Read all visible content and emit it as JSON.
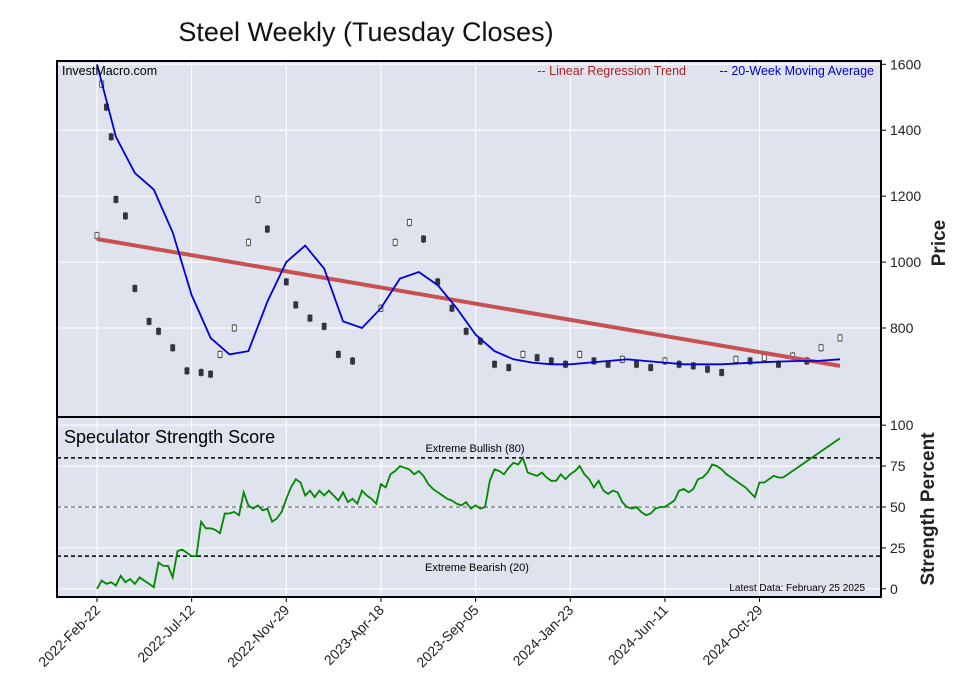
{
  "title": "Steel Weekly (Tuesday Closes)",
  "source_label": "InvestMacro.com",
  "legend": {
    "regression": "-- Linear Regression Trend",
    "moving_average": "-- 20-Week Moving Average"
  },
  "colors": {
    "panel_bg": "#dfe3ee",
    "regression": "#c85050",
    "moving_average": "#0000dd",
    "strength_line": "#008800",
    "regression_text": "#b02020",
    "ma_text": "#0000cc",
    "candle_up": "#ffffff",
    "candle_down": "#333344"
  },
  "price_axis": {
    "label": "Price",
    "ylim": [
      530,
      1610
    ],
    "ticks": [
      "800",
      "1000",
      "1200",
      "1400",
      "1600"
    ]
  },
  "strength_axis": {
    "label": "Strength Percent",
    "ylim": [
      -5,
      105
    ],
    "ticks": [
      "0",
      "25",
      "50",
      "75",
      "100"
    ]
  },
  "x_ticks": [
    "2022-Feb-22",
    "2022-Jul-12",
    "2022-Nov-29",
    "2023-Apr-18",
    "2023-Sep-05",
    "2024-Jan-23",
    "2024-Jun-11",
    "2024-Oct-29"
  ],
  "strength_panel": {
    "title": "Speculator Strength Score",
    "extreme_bullish_label": "Extreme Bullish (80)",
    "extreme_bearish_label": "Extreme Bearish (20)",
    "latest_label": "Latest Data: February 25 2025"
  },
  "chart_data": {
    "type": "line",
    "x_start": "2022-02-22",
    "x_end": "2025-02-25",
    "price_series": [
      {
        "date": "2022-02-22",
        "close": 1080
      },
      {
        "date": "2022-03-01",
        "close": 1540
      },
      {
        "date": "2022-03-08",
        "close": 1470
      },
      {
        "date": "2022-03-15",
        "close": 1380
      },
      {
        "date": "2022-03-22",
        "close": 1190
      },
      {
        "date": "2022-04-05",
        "close": 1140
      },
      {
        "date": "2022-04-19",
        "close": 920
      },
      {
        "date": "2022-05-10",
        "close": 820
      },
      {
        "date": "2022-05-24",
        "close": 790
      },
      {
        "date": "2022-06-14",
        "close": 740
      },
      {
        "date": "2022-07-05",
        "close": 670
      },
      {
        "date": "2022-07-26",
        "close": 665
      },
      {
        "date": "2022-08-09",
        "close": 660
      },
      {
        "date": "2022-08-23",
        "close": 720
      },
      {
        "date": "2022-09-13",
        "close": 800
      },
      {
        "date": "2022-10-04",
        "close": 1060
      },
      {
        "date": "2022-10-18",
        "close": 1190
      },
      {
        "date": "2022-11-01",
        "close": 1100
      },
      {
        "date": "2022-11-29",
        "close": 940
      },
      {
        "date": "2022-12-13",
        "close": 870
      },
      {
        "date": "2023-01-03",
        "close": 830
      },
      {
        "date": "2023-01-24",
        "close": 805
      },
      {
        "date": "2023-02-14",
        "close": 720
      },
      {
        "date": "2023-03-07",
        "close": 700
      },
      {
        "date": "2023-04-18",
        "close": 860
      },
      {
        "date": "2023-05-09",
        "close": 1060
      },
      {
        "date": "2023-05-30",
        "close": 1120
      },
      {
        "date": "2023-06-20",
        "close": 1070
      },
      {
        "date": "2023-07-11",
        "close": 940
      },
      {
        "date": "2023-08-01",
        "close": 860
      },
      {
        "date": "2023-08-22",
        "close": 790
      },
      {
        "date": "2023-09-12",
        "close": 760
      },
      {
        "date": "2023-10-03",
        "close": 690
      },
      {
        "date": "2023-10-24",
        "close": 680
      },
      {
        "date": "2023-11-14",
        "close": 720
      },
      {
        "date": "2023-12-05",
        "close": 710
      },
      {
        "date": "2023-12-26",
        "close": 700
      },
      {
        "date": "2024-01-16",
        "close": 690
      },
      {
        "date": "2024-02-06",
        "close": 720
      },
      {
        "date": "2024-02-27",
        "close": 700
      },
      {
        "date": "2024-03-19",
        "close": 690
      },
      {
        "date": "2024-04-09",
        "close": 705
      },
      {
        "date": "2024-04-30",
        "close": 690
      },
      {
        "date": "2024-05-21",
        "close": 680
      },
      {
        "date": "2024-06-11",
        "close": 700
      },
      {
        "date": "2024-07-02",
        "close": 690
      },
      {
        "date": "2024-07-23",
        "close": 685
      },
      {
        "date": "2024-08-13",
        "close": 675
      },
      {
        "date": "2024-09-03",
        "close": 665
      },
      {
        "date": "2024-09-24",
        "close": 705
      },
      {
        "date": "2024-10-15",
        "close": 700
      },
      {
        "date": "2024-11-05",
        "close": 710
      },
      {
        "date": "2024-11-26",
        "close": 690
      },
      {
        "date": "2024-12-17",
        "close": 715
      },
      {
        "date": "2025-01-07",
        "close": 700
      },
      {
        "date": "2025-01-28",
        "close": 740
      },
      {
        "date": "2025-02-25",
        "close": 770
      }
    ],
    "moving_average": [
      {
        "date": "2022-02-22",
        "value": 1600
      },
      {
        "date": "2022-03-22",
        "value": 1380
      },
      {
        "date": "2022-04-19",
        "value": 1270
      },
      {
        "date": "2022-05-17",
        "value": 1220
      },
      {
        "date": "2022-06-14",
        "value": 1090
      },
      {
        "date": "2022-07-12",
        "value": 900
      },
      {
        "date": "2022-08-09",
        "value": 770
      },
      {
        "date": "2022-09-06",
        "value": 720
      },
      {
        "date": "2022-10-04",
        "value": 730
      },
      {
        "date": "2022-11-01",
        "value": 880
      },
      {
        "date": "2022-11-29",
        "value": 1000
      },
      {
        "date": "2022-12-27",
        "value": 1050
      },
      {
        "date": "2023-01-24",
        "value": 980
      },
      {
        "date": "2023-02-21",
        "value": 820
      },
      {
        "date": "2023-03-21",
        "value": 800
      },
      {
        "date": "2023-04-18",
        "value": 860
      },
      {
        "date": "2023-05-16",
        "value": 950
      },
      {
        "date": "2023-06-13",
        "value": 970
      },
      {
        "date": "2023-07-11",
        "value": 930
      },
      {
        "date": "2023-08-08",
        "value": 860
      },
      {
        "date": "2023-09-05",
        "value": 780
      },
      {
        "date": "2023-10-03",
        "value": 730
      },
      {
        "date": "2023-10-31",
        "value": 705
      },
      {
        "date": "2023-11-28",
        "value": 695
      },
      {
        "date": "2023-12-26",
        "value": 690
      },
      {
        "date": "2024-01-23",
        "value": 690
      },
      {
        "date": "2024-02-20",
        "value": 695
      },
      {
        "date": "2024-03-19",
        "value": 700
      },
      {
        "date": "2024-04-16",
        "value": 705
      },
      {
        "date": "2024-05-14",
        "value": 700
      },
      {
        "date": "2024-06-11",
        "value": 695
      },
      {
        "date": "2024-07-09",
        "value": 690
      },
      {
        "date": "2024-08-06",
        "value": 690
      },
      {
        "date": "2024-09-03",
        "value": 690
      },
      {
        "date": "2024-10-01",
        "value": 693
      },
      {
        "date": "2024-10-29",
        "value": 696
      },
      {
        "date": "2024-11-26",
        "value": 698
      },
      {
        "date": "2024-12-24",
        "value": 700
      },
      {
        "date": "2025-01-21",
        "value": 700
      },
      {
        "date": "2025-02-25",
        "value": 705
      }
    ],
    "regression_trend": [
      {
        "date": "2022-02-22",
        "value": 1070
      },
      {
        "date": "2025-02-25",
        "value": 685
      }
    ],
    "strength": [
      {
        "date": "2022-02-22",
        "value": 0
      },
      {
        "date": "2022-03-01",
        "value": 5
      },
      {
        "date": "2022-03-08",
        "value": 3
      },
      {
        "date": "2022-03-15",
        "value": 4
      },
      {
        "date": "2022-03-22",
        "value": 2
      },
      {
        "date": "2022-03-29",
        "value": 8
      },
      {
        "date": "2022-04-05",
        "value": 4
      },
      {
        "date": "2022-04-12",
        "value": 6
      },
      {
        "date": "2022-04-19",
        "value": 3
      },
      {
        "date": "2022-04-26",
        "value": 7
      },
      {
        "date": "2022-05-03",
        "value": 5
      },
      {
        "date": "2022-05-10",
        "value": 3
      },
      {
        "date": "2022-05-17",
        "value": 1
      },
      {
        "date": "2022-05-24",
        "value": 16
      },
      {
        "date": "2022-05-31",
        "value": 14
      },
      {
        "date": "2022-06-07",
        "value": 14
      },
      {
        "date": "2022-06-14",
        "value": 7
      },
      {
        "date": "2022-06-21",
        "value": 23
      },
      {
        "date": "2022-06-28",
        "value": 24
      },
      {
        "date": "2022-07-05",
        "value": 22
      },
      {
        "date": "2022-07-12",
        "value": 20
      },
      {
        "date": "2022-07-19",
        "value": 20
      },
      {
        "date": "2022-07-26",
        "value": 41
      },
      {
        "date": "2022-08-02",
        "value": 37
      },
      {
        "date": "2022-08-09",
        "value": 37
      },
      {
        "date": "2022-08-16",
        "value": 36
      },
      {
        "date": "2022-08-23",
        "value": 34
      },
      {
        "date": "2022-08-30",
        "value": 46
      },
      {
        "date": "2022-09-06",
        "value": 46
      },
      {
        "date": "2022-09-13",
        "value": 47
      },
      {
        "date": "2022-09-20",
        "value": 45
      },
      {
        "date": "2022-09-27",
        "value": 59
      },
      {
        "date": "2022-10-04",
        "value": 51
      },
      {
        "date": "2022-10-11",
        "value": 49
      },
      {
        "date": "2022-10-18",
        "value": 51
      },
      {
        "date": "2022-10-25",
        "value": 48
      },
      {
        "date": "2022-11-01",
        "value": 49
      },
      {
        "date": "2022-11-08",
        "value": 41
      },
      {
        "date": "2022-11-15",
        "value": 43
      },
      {
        "date": "2022-11-22",
        "value": 47
      },
      {
        "date": "2022-11-29",
        "value": 55
      },
      {
        "date": "2022-12-06",
        "value": 62
      },
      {
        "date": "2022-12-13",
        "value": 67
      },
      {
        "date": "2022-12-20",
        "value": 65
      },
      {
        "date": "2022-12-27",
        "value": 57
      },
      {
        "date": "2023-01-03",
        "value": 60
      },
      {
        "date": "2023-01-10",
        "value": 56
      },
      {
        "date": "2023-01-17",
        "value": 60
      },
      {
        "date": "2023-01-24",
        "value": 57
      },
      {
        "date": "2023-01-31",
        "value": 60
      },
      {
        "date": "2023-02-07",
        "value": 57
      },
      {
        "date": "2023-02-14",
        "value": 54
      },
      {
        "date": "2023-02-21",
        "value": 59
      },
      {
        "date": "2023-02-28",
        "value": 53
      },
      {
        "date": "2023-03-07",
        "value": 55
      },
      {
        "date": "2023-03-14",
        "value": 52
      },
      {
        "date": "2023-03-21",
        "value": 60
      },
      {
        "date": "2023-03-28",
        "value": 57
      },
      {
        "date": "2023-04-04",
        "value": 55
      },
      {
        "date": "2023-04-11",
        "value": 52
      },
      {
        "date": "2023-04-18",
        "value": 64
      },
      {
        "date": "2023-04-25",
        "value": 62
      },
      {
        "date": "2023-05-02",
        "value": 70
      },
      {
        "date": "2023-05-09",
        "value": 72
      },
      {
        "date": "2023-05-16",
        "value": 75
      },
      {
        "date": "2023-05-23",
        "value": 74
      },
      {
        "date": "2023-05-30",
        "value": 73
      },
      {
        "date": "2023-06-06",
        "value": 70
      },
      {
        "date": "2023-06-13",
        "value": 72
      },
      {
        "date": "2023-06-20",
        "value": 69
      },
      {
        "date": "2023-06-27",
        "value": 64
      },
      {
        "date": "2023-07-04",
        "value": 61
      },
      {
        "date": "2023-07-11",
        "value": 59
      },
      {
        "date": "2023-07-18",
        "value": 57
      },
      {
        "date": "2023-07-25",
        "value": 55
      },
      {
        "date": "2023-08-01",
        "value": 54
      },
      {
        "date": "2023-08-08",
        "value": 52
      },
      {
        "date": "2023-08-15",
        "value": 51
      },
      {
        "date": "2023-08-22",
        "value": 53
      },
      {
        "date": "2023-08-29",
        "value": 49
      },
      {
        "date": "2023-09-05",
        "value": 51
      },
      {
        "date": "2023-09-12",
        "value": 49
      },
      {
        "date": "2023-09-19",
        "value": 50
      },
      {
        "date": "2023-09-26",
        "value": 66
      },
      {
        "date": "2023-10-03",
        "value": 73
      },
      {
        "date": "2023-10-10",
        "value": 72
      },
      {
        "date": "2023-10-17",
        "value": 70
      },
      {
        "date": "2023-10-24",
        "value": 74
      },
      {
        "date": "2023-10-31",
        "value": 77
      },
      {
        "date": "2023-11-07",
        "value": 76
      },
      {
        "date": "2023-11-14",
        "value": 80
      },
      {
        "date": "2023-11-21",
        "value": 71
      },
      {
        "date": "2023-11-28",
        "value": 70
      },
      {
        "date": "2023-12-05",
        "value": 69
      },
      {
        "date": "2023-12-12",
        "value": 71
      },
      {
        "date": "2023-12-19",
        "value": 68
      },
      {
        "date": "2023-12-26",
        "value": 66
      },
      {
        "date": "2024-01-02",
        "value": 66
      },
      {
        "date": "2024-01-09",
        "value": 70
      },
      {
        "date": "2024-01-16",
        "value": 67
      },
      {
        "date": "2024-01-23",
        "value": 70
      },
      {
        "date": "2024-01-30",
        "value": 72
      },
      {
        "date": "2024-02-06",
        "value": 75
      },
      {
        "date": "2024-02-13",
        "value": 70
      },
      {
        "date": "2024-02-20",
        "value": 67
      },
      {
        "date": "2024-02-27",
        "value": 62
      },
      {
        "date": "2024-03-05",
        "value": 66
      },
      {
        "date": "2024-03-12",
        "value": 60
      },
      {
        "date": "2024-03-19",
        "value": 58
      },
      {
        "date": "2024-03-26",
        "value": 60
      },
      {
        "date": "2024-04-02",
        "value": 59
      },
      {
        "date": "2024-04-09",
        "value": 53
      },
      {
        "date": "2024-04-16",
        "value": 50
      },
      {
        "date": "2024-04-23",
        "value": 49
      },
      {
        "date": "2024-04-30",
        "value": 50
      },
      {
        "date": "2024-05-07",
        "value": 47
      },
      {
        "date": "2024-05-14",
        "value": 45
      },
      {
        "date": "2024-05-21",
        "value": 46
      },
      {
        "date": "2024-05-28",
        "value": 49
      },
      {
        "date": "2024-06-04",
        "value": 50
      },
      {
        "date": "2024-06-11",
        "value": 50
      },
      {
        "date": "2024-06-18",
        "value": 52
      },
      {
        "date": "2024-06-25",
        "value": 54
      },
      {
        "date": "2024-07-02",
        "value": 60
      },
      {
        "date": "2024-07-09",
        "value": 61
      },
      {
        "date": "2024-07-16",
        "value": 59
      },
      {
        "date": "2024-07-23",
        "value": 61
      },
      {
        "date": "2024-07-30",
        "value": 67
      },
      {
        "date": "2024-08-06",
        "value": 68
      },
      {
        "date": "2024-08-13",
        "value": 71
      },
      {
        "date": "2024-08-20",
        "value": 76
      },
      {
        "date": "2024-08-27",
        "value": 75
      },
      {
        "date": "2024-09-03",
        "value": 73
      },
      {
        "date": "2024-09-10",
        "value": 70
      },
      {
        "date": "2024-09-17",
        "value": 68
      },
      {
        "date": "2024-09-24",
        "value": 66
      },
      {
        "date": "2024-10-01",
        "value": 64
      },
      {
        "date": "2024-10-08",
        "value": 62
      },
      {
        "date": "2024-10-15",
        "value": 59
      },
      {
        "date": "2024-10-22",
        "value": 56
      },
      {
        "date": "2024-10-29",
        "value": 65
      },
      {
        "date": "2024-11-05",
        "value": 65
      },
      {
        "date": "2024-11-12",
        "value": 67
      },
      {
        "date": "2024-11-19",
        "value": 69
      },
      {
        "date": "2024-11-26",
        "value": 68
      },
      {
        "date": "2024-12-03",
        "value": 68
      },
      {
        "date": "2025-02-25",
        "value": 92
      }
    ],
    "strength_ref_lines": [
      80,
      50,
      20
    ]
  }
}
